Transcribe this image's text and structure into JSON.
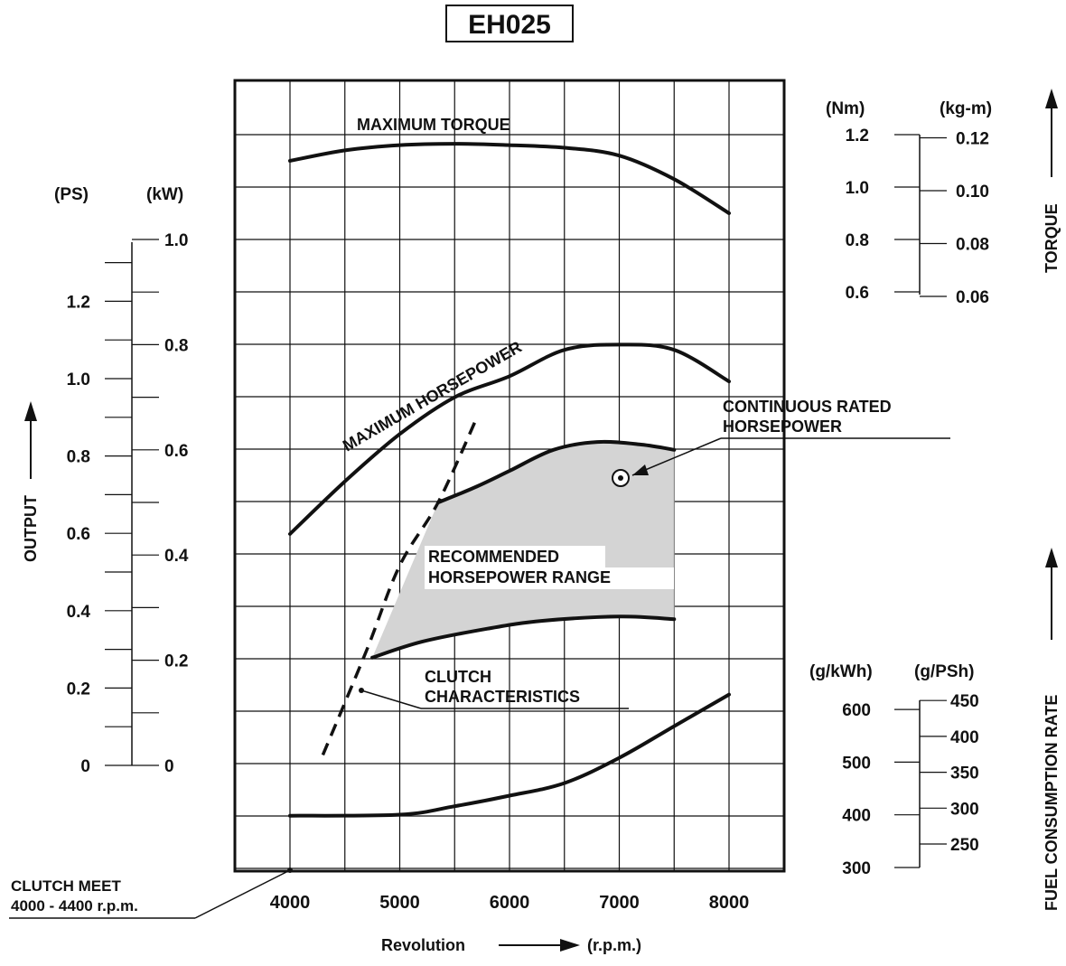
{
  "title": "EH025",
  "chart_data": {
    "type": "line",
    "title": "EH025",
    "x_axis": {
      "label_left": "Revolution",
      "label_right": "(r.p.m.)",
      "ticks": [
        "4000",
        "5000",
        "6000",
        "7000",
        "8000"
      ],
      "range": [
        3500,
        8500
      ]
    },
    "series": [
      {
        "name": "MAXIMUM TORQUE",
        "axis": "torque_Nm",
        "x": [
          4000,
          4500,
          5000,
          5500,
          6000,
          6500,
          7000,
          7500,
          8000
        ],
        "y": [
          1.1,
          1.14,
          1.16,
          1.165,
          1.16,
          1.15,
          1.12,
          1.03,
          0.9
        ]
      },
      {
        "name": "MAXIMUM HORSEPOWER",
        "axis": "output_kW",
        "x": [
          4000,
          4500,
          5000,
          5500,
          6000,
          6500,
          7000,
          7500,
          8000
        ],
        "y": [
          0.44,
          0.54,
          0.63,
          0.7,
          0.74,
          0.79,
          0.8,
          0.79,
          0.73
        ]
      },
      {
        "name": "CONTINUOUS RATED HORSEPOWER",
        "axis": "output_kW",
        "x": [
          5350,
          5700,
          6000,
          6400,
          6800,
          7200,
          7500
        ],
        "y": [
          0.5,
          0.53,
          0.56,
          0.6,
          0.615,
          0.61,
          0.6
        ]
      },
      {
        "name": "RECOMMENDED HORSEPOWER RANGE lower limit",
        "axis": "output_kW",
        "x": [
          4750,
          5200,
          5800,
          6300,
          7000,
          7500
        ],
        "y": [
          0.205,
          0.235,
          0.26,
          0.275,
          0.283,
          0.278
        ]
      },
      {
        "name": "CLUTCH CHARACTERISTICS",
        "axis": "output_kW",
        "x": [
          4300,
          4700,
          5000,
          5350,
          5700
        ],
        "y": [
          0.02,
          0.22,
          0.38,
          0.5,
          0.66
        ]
      },
      {
        "name": "FUEL CONSUMPTION RATE",
        "axis": "fuel_g_kWh",
        "x": [
          4000,
          5000,
          5500,
          6000,
          6500,
          7000,
          7500,
          8000
        ],
        "y": [
          400,
          402,
          418,
          438,
          462,
          510,
          570,
          630
        ]
      }
    ],
    "axes": {
      "output_ps": {
        "unit": "(PS)",
        "ticks": [
          "0",
          "0.2",
          "0.4",
          "0.6",
          "0.8",
          "1.0",
          "1.2"
        ]
      },
      "output_kw": {
        "unit": "(kW)",
        "ticks": [
          "0",
          "0.2",
          "0.4",
          "0.6",
          "0.8",
          "1.0"
        ]
      },
      "output_label": "OUTPUT",
      "torque_nm": {
        "unit": "(Nm)",
        "ticks": [
          "0.6",
          "0.8",
          "1.0",
          "1.2"
        ]
      },
      "torque_kgm": {
        "unit": "(kg-m)",
        "ticks": [
          "0.06",
          "0.08",
          "0.10",
          "0.12"
        ]
      },
      "torque_label": "TORQUE",
      "fuel_gkwh": {
        "unit": "(g/kWh)",
        "ticks": [
          "300",
          "400",
          "500",
          "600"
        ]
      },
      "fuel_gpsh": {
        "unit": "(g/PSh)",
        "ticks": [
          "250",
          "300",
          "350",
          "400",
          "450"
        ]
      },
      "fuel_label": "FUEL CONSUMPTION RATE"
    },
    "labels": {
      "max_torque": "MAXIMUM TORQUE",
      "max_horsepower": "MAXIMUM HORSEPOWER",
      "continuous_1": "CONTINUOUS RATED",
      "continuous_2": "HORSEPOWER",
      "recommended_1": "RECOMMENDED",
      "recommended_2": "HORSEPOWER RANGE",
      "clutch_1": "CLUTCH",
      "clutch_2": "CHARACTERISTICS",
      "clutch_meet_1": "CLUTCH MEET",
      "clutch_meet_2": "4000 - 4400 r.p.m."
    },
    "grid": true,
    "colors": {
      "line": "#111111",
      "shade": "#d4d4d4"
    }
  }
}
